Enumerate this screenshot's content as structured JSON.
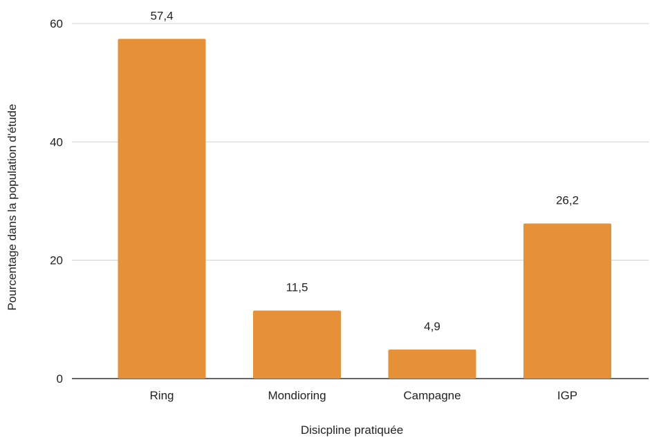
{
  "chart_data": {
    "type": "bar",
    "title": "",
    "xlabel": "Disicpline pratiquée",
    "ylabel": "Pourcentage dans la population d'étude",
    "categories": [
      "Ring",
      "Mondioring",
      "Campagne",
      "IGP"
    ],
    "values": [
      57.4,
      11.5,
      4.9,
      26.2
    ],
    "data_labels": [
      "57,4",
      "11,5",
      "4,9",
      "26,2"
    ],
    "yticks": [
      0,
      20,
      40,
      60
    ],
    "ytick_labels": [
      "0",
      "20",
      "40",
      "60"
    ],
    "ylim": [
      0,
      60
    ],
    "grid": true,
    "legend": "none",
    "bar_color": "#e69138",
    "grid_color": "#d0d0d0"
  }
}
